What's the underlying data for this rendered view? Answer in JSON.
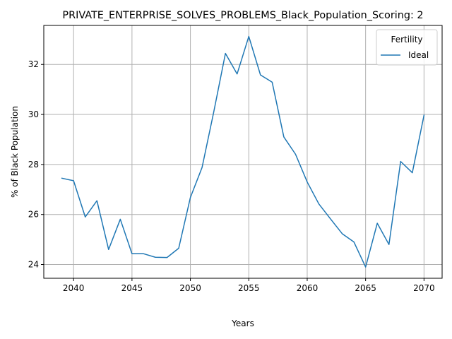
{
  "chart_data": {
    "type": "line",
    "title": "PRIVATE_ENTERPRISE_SOLVES_PROBLEMS_Black_Population_Scoring: 2",
    "xlabel": "Years",
    "ylabel": "% of Black Population",
    "xlim": [
      2037.45,
      2071.55
    ],
    "ylim": [
      23.45,
      33.56
    ],
    "xticks": [
      2040,
      2045,
      2050,
      2055,
      2060,
      2065,
      2070
    ],
    "yticks": [
      24,
      26,
      28,
      30,
      32
    ],
    "grid": true,
    "legend": {
      "title": "Fertility",
      "placement": "top-right"
    },
    "series": [
      {
        "name": "Ideal",
        "color": "#1f77b4",
        "x": [
          2039,
          2040,
          2041,
          2042,
          2043,
          2044,
          2045,
          2046,
          2047,
          2048,
          2049,
          2050,
          2051,
          2052,
          2053,
          2054,
          2055,
          2056,
          2057,
          2058,
          2059,
          2060,
          2061,
          2062,
          2063,
          2064,
          2065,
          2066,
          2067,
          2068,
          2069,
          2070
        ],
        "y": [
          27.45,
          27.35,
          25.9,
          26.55,
          24.6,
          25.81,
          24.43,
          24.43,
          24.29,
          24.28,
          24.65,
          26.68,
          27.88,
          30.1,
          32.44,
          31.62,
          33.12,
          31.58,
          31.29,
          29.1,
          28.41,
          27.3,
          26.42,
          25.82,
          25.23,
          24.9,
          23.9,
          25.65,
          24.8,
          28.12,
          27.67,
          29.97
        ]
      }
    ]
  }
}
